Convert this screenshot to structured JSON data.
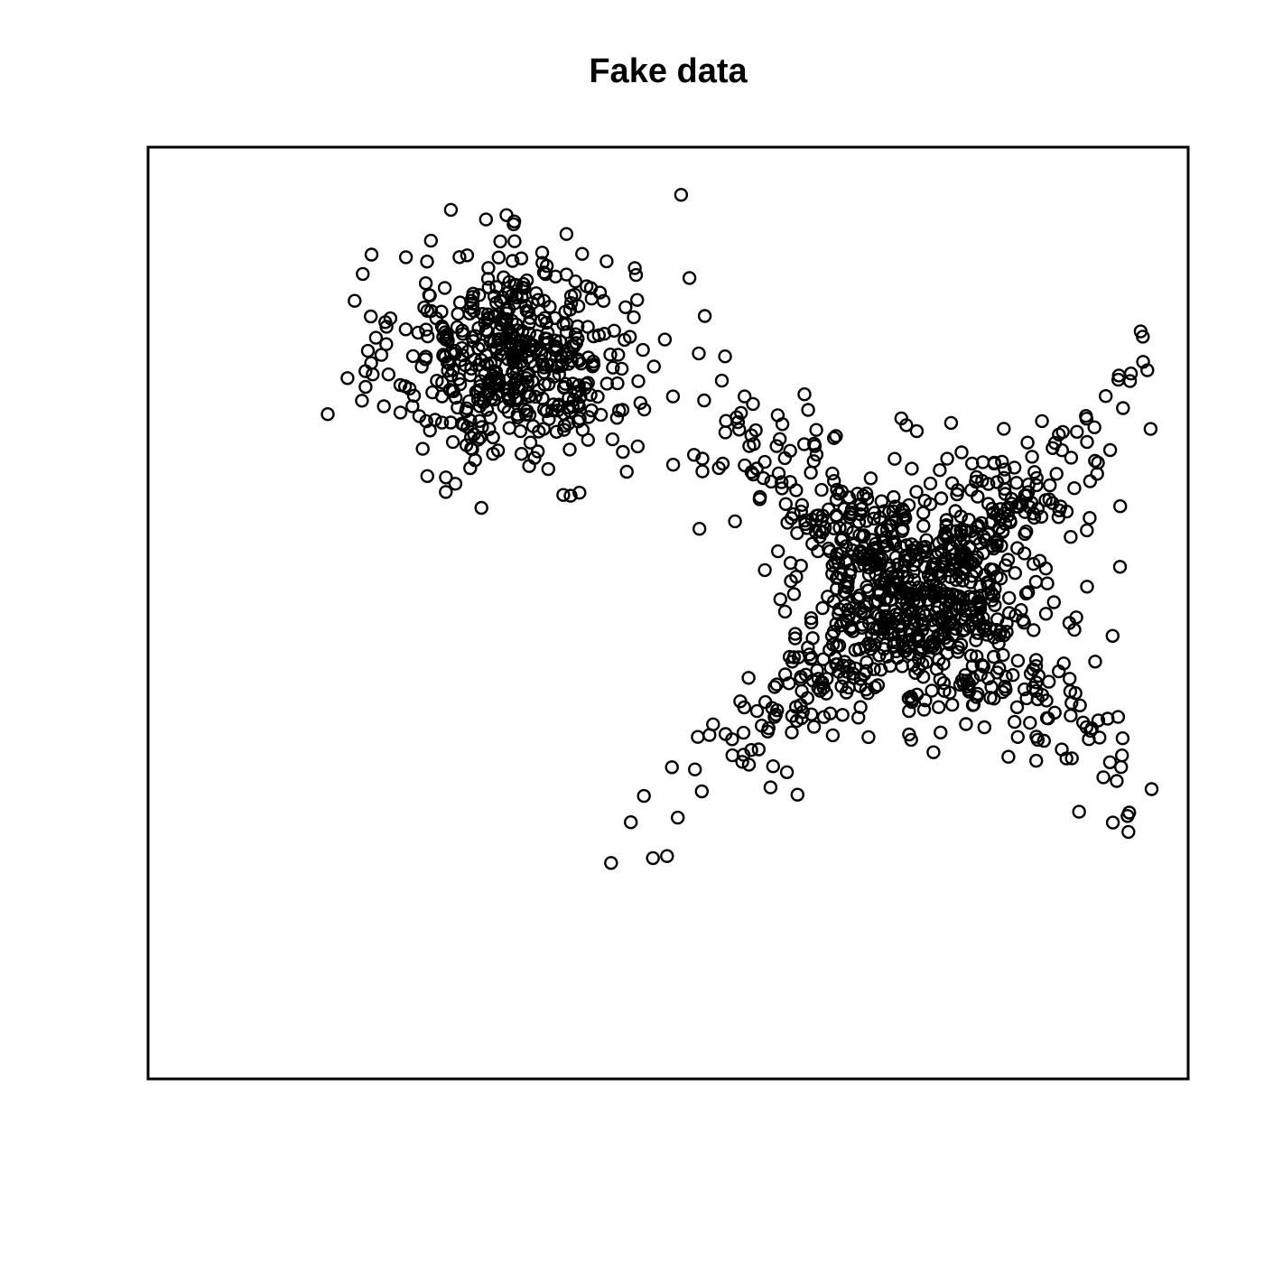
{
  "chart_data": {
    "type": "scatter",
    "title": "Fake data",
    "xlabel": "",
    "ylabel": "",
    "axes_shown": false,
    "xlim": [
      -3.2,
      14.4
    ],
    "ylim": [
      -12.8,
      5.0
    ],
    "marker": "open-circle",
    "colors": {
      "marker": "#000000",
      "frame": "#000000",
      "background": "#ffffff"
    },
    "clusters": [
      {
        "label": "",
        "shape": "roughly round cloud",
        "center": [
          3.0,
          1.0
        ],
        "sd": [
          1.0,
          1.0
        ],
        "approx_count": 500,
        "sample_points": [
          [
            5.82,
            4.09
          ],
          [
            -0.16,
            -0.1
          ],
          [
            2.07,
            2.9
          ],
          [
            2.76,
            3.2
          ],
          [
            3.88,
            3.34
          ],
          [
            5.96,
            2.5
          ],
          [
            6.13,
            -2.29
          ],
          [
            1.16,
            1.52
          ],
          [
            2.44,
            -1.89
          ],
          [
            3.64,
            -0.03
          ],
          [
            5.36,
            0.81
          ],
          [
            0.48,
            0.42
          ],
          [
            0.79,
            0.05
          ],
          [
            6.18,
            -0.95
          ],
          [
            6.58,
            -0.23
          ],
          [
            1.07,
            -0.07
          ],
          [
            2.0,
            -1.43
          ],
          [
            4.1,
            -1.6
          ],
          [
            4.9,
            -1.2
          ],
          [
            5.02,
            1.75
          ],
          [
            1.5,
            2.4
          ],
          [
            0.9,
            1.73
          ],
          [
            6.12,
            1.06
          ],
          [
            4.56,
            2.82
          ],
          [
            1.84,
            -1.31
          ],
          [
            2.66,
            2.15
          ],
          [
            3.95,
            -1.66
          ],
          [
            6.76,
            -0.16
          ]
        ]
      },
      {
        "label": "",
        "shape": "dense X / star-shaped cloud",
        "center": [
          9.8,
          -3.5
        ],
        "sd": [
          1.2,
          1.2
        ],
        "approx_count": 1000,
        "sample_points": [
          [
            7.97,
            -0.02
          ],
          [
            11.25,
            -1.01
          ],
          [
            7.61,
            -6.94
          ],
          [
            7.79,
            -7.37
          ],
          [
            12.72,
            -6.31
          ],
          [
            12.88,
            -5.95
          ],
          [
            12.86,
            -1.24
          ],
          [
            13.25,
            -1.86
          ],
          [
            7.1,
            -1.14
          ],
          [
            8.44,
            -0.52
          ],
          [
            8.66,
            -1.69
          ],
          [
            8.99,
            -6.27
          ],
          [
            9.63,
            -0.31
          ],
          [
            7.52,
            -1.4
          ],
          [
            12.28,
            -0.44
          ],
          [
            11.96,
            -6.34
          ],
          [
            10.77,
            -5.65
          ],
          [
            8.59,
            -3.38
          ],
          [
            12.39,
            -4.09
          ],
          [
            12.05,
            -1.73
          ]
        ]
      }
    ]
  }
}
